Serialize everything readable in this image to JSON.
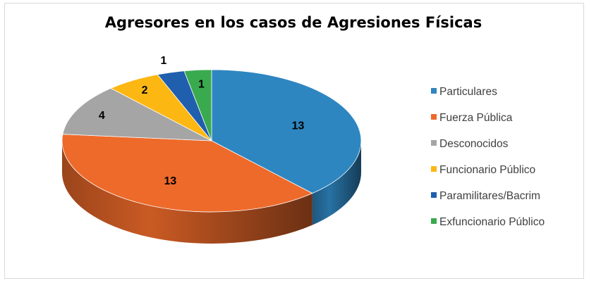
{
  "chart_data": {
    "type": "pie",
    "title": "Agresores en los casos de Agresiones Físicas",
    "categories": [
      "Particulares",
      "Fuerza Pública",
      "Desconocidos",
      "Funcionario Público",
      "Paramilitares/Bacrim",
      "Exfuncionario Público"
    ],
    "values": [
      13,
      13,
      4,
      2,
      1,
      1
    ],
    "labels": [
      "13",
      "13",
      "4",
      "2",
      "1",
      "1"
    ],
    "colors": [
      "#2E86C1",
      "#EE6A2A",
      "#A5A5A5",
      "#FDB713",
      "#1F5FAD",
      "#3AAA4F"
    ],
    "legend_position": "right",
    "style": "3d"
  }
}
